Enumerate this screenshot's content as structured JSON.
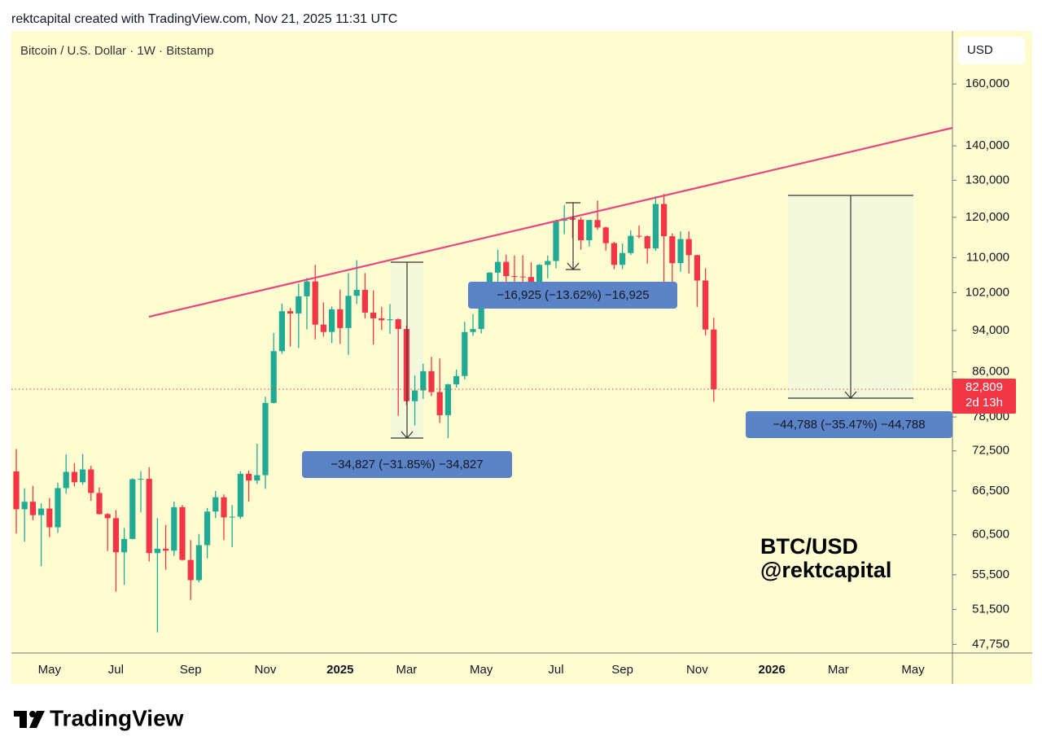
{
  "header": "rektcapital created with TradingView.com, Nov 21, 2025 11:31 UTC",
  "logo_text": "TradingView",
  "chart_data": {
    "type": "candlestick",
    "title": "Bitcoin / U.S. Dollar · 1W · Bitstamp",
    "currency": "USD",
    "watermark": [
      "BTC/USD",
      "@rektcapital"
    ],
    "annotations": [
      "−34,827 (−31.85%) −34,827",
      "−16,925 (−13.62%) −16,925",
      "−44,788 (−35.47%) −44,788"
    ],
    "up_color": "#22ab94",
    "down_color": "#f23645",
    "log_scale": true,
    "grid": false,
    "categories": [
      null,
      null,
      null,
      null,
      "May",
      null,
      null,
      null,
      null,
      null,
      null,
      null,
      "Jul",
      null,
      null,
      null,
      null,
      null,
      null,
      null,
      null,
      "Sep",
      null,
      null,
      null,
      null,
      null,
      null,
      null,
      null,
      "Nov",
      null,
      null,
      null,
      null,
      null,
      null,
      null,
      null,
      "2025",
      null,
      null,
      null,
      null,
      null,
      null,
      null,
      "Mar",
      null,
      null,
      null,
      null,
      null,
      null,
      null,
      null,
      "May",
      null,
      null,
      null,
      null,
      null,
      null,
      null,
      null,
      "Jul",
      null,
      null,
      null,
      null,
      null,
      null,
      null,
      "Sep",
      null,
      null,
      null,
      null,
      null,
      null,
      null,
      null,
      "Nov",
      null,
      null,
      null,
      null,
      null,
      null,
      null,
      null,
      "2026",
      null,
      null,
      null,
      null,
      null,
      null,
      null,
      "Mar",
      null,
      null,
      null,
      null,
      null,
      null,
      null,
      null,
      "May",
      null,
      null,
      null,
      null
    ],
    "open": [
      69360,
      63920,
      64960,
      63110,
      64010,
      61480,
      66900,
      69290,
      67750,
      69650,
      66200,
      63250,
      62700,
      58250,
      59950,
      68200,
      68250,
      58150,
      58700,
      58450,
      64200,
      57300,
      54850,
      59150,
      63600,
      65600,
      62800,
      62900,
      69000,
      68000,
      68800,
      80400,
      89900,
      98000,
      97500,
      101200,
      104500,
      95200,
      93700,
      98400,
      94500,
      101300,
      102600,
      97700,
      96500,
      96100,
      96300,
      94300,
      80700,
      82600,
      86100,
      82300,
      78300,
      83700,
      85200,
      93700,
      94300,
      104100,
      106500,
      109000,
      105700,
      105600,
      105500,
      100900,
      108300,
      109200,
      119100,
      119800,
      119400,
      114200,
      119300,
      117400,
      113500,
      108300,
      111100,
      115300,
      115200,
      112200,
      123500,
      115200,
      108700,
      114500,
      110600,
      104700,
      94200,
      null,
      null,
      null,
      null,
      null,
      null,
      null,
      null,
      null,
      null,
      null,
      null,
      null,
      null,
      null,
      null,
      null,
      null,
      null,
      null,
      null,
      null,
      null,
      null,
      null,
      null,
      null,
      null
    ],
    "high": [
      72790,
      66880,
      67230,
      64730,
      65490,
      67700,
      71950,
      70600,
      71990,
      70200,
      67000,
      63400,
      63800,
      61400,
      68350,
      69400,
      70000,
      62700,
      61800,
      65000,
      64500,
      59800,
      60600,
      64100,
      66500,
      66000,
      64500,
      69400,
      69500,
      73600,
      81500,
      93500,
      99600,
      98700,
      104000,
      105300,
      108300,
      99900,
      99000,
      102700,
      106400,
      109400,
      106400,
      102500,
      98900,
      99500,
      96500,
      95000,
      85300,
      87500,
      88800,
      88500,
      83800,
      86400,
      95800,
      97400,
      104300,
      106600,
      111900,
      110700,
      110500,
      110600,
      108900,
      108500,
      110500,
      119400,
      123200,
      120300,
      120000,
      119400,
      124400,
      117600,
      113800,
      113400,
      116700,
      117900,
      115400,
      125600,
      126200,
      115900,
      116400,
      116400,
      110700,
      107500,
      96600,
      null,
      null,
      null,
      null,
      null,
      null,
      null,
      null,
      null,
      null,
      null,
      null,
      null,
      null,
      null,
      null,
      null,
      null,
      null,
      null,
      null,
      null,
      null,
      null,
      null,
      null,
      null,
      null
    ],
    "low": [
      60660,
      59600,
      62420,
      56550,
      60190,
      60750,
      66100,
      67150,
      67400,
      65100,
      63200,
      58400,
      53500,
      54300,
      59900,
      63500,
      57100,
      49000,
      56100,
      57800,
      57200,
      52550,
      54600,
      57500,
      62700,
      59800,
      58900,
      62600,
      65000,
      67500,
      66800,
      80300,
      89400,
      90800,
      90500,
      94200,
      92200,
      92800,
      91500,
      91300,
      89200,
      99500,
      96500,
      91200,
      94100,
      93300,
      78200,
      80000,
      76600,
      81100,
      81600,
      77000,
      74500,
      83100,
      84600,
      92900,
      93400,
      100800,
      102100,
      103100,
      100400,
      102700,
      99600,
      100400,
      105200,
      107500,
      115700,
      114700,
      111900,
      112700,
      116800,
      111700,
      107300,
      107300,
      110600,
      114700,
      108600,
      111600,
      102000,
      103500,
      106700,
      106300,
      98900,
      93000,
      80600,
      null,
      null,
      null,
      null,
      null,
      null,
      null,
      null,
      null,
      null,
      null,
      null,
      null,
      null,
      null,
      null,
      null,
      null,
      null,
      null,
      null,
      null,
      null,
      null,
      null,
      null,
      null,
      null
    ],
    "close": [
      63920,
      64960,
      63110,
      64010,
      61480,
      66900,
      69290,
      67750,
      69650,
      66200,
      63250,
      62700,
      58250,
      59950,
      68200,
      68250,
      58150,
      58700,
      58450,
      64200,
      57300,
      54850,
      59150,
      63600,
      65600,
      62800,
      62900,
      69000,
      68000,
      68800,
      80400,
      89900,
      98000,
      97500,
      101200,
      104500,
      95200,
      93700,
      98400,
      94500,
      101300,
      102600,
      97700,
      96500,
      96100,
      96300,
      94300,
      80700,
      82600,
      86100,
      82300,
      78300,
      83700,
      85200,
      93700,
      94300,
      104100,
      106500,
      109000,
      105700,
      105600,
      105500,
      100900,
      108300,
      109200,
      119100,
      119800,
      119400,
      114200,
      119300,
      117400,
      113500,
      108300,
      111100,
      115300,
      115200,
      112200,
      123500,
      115200,
      108700,
      114500,
      110600,
      104700,
      94200,
      82809,
      null,
      null,
      null,
      null,
      null,
      null,
      null,
      null,
      null,
      null,
      null,
      null,
      null,
      null,
      null,
      null,
      null,
      null,
      null,
      null,
      null,
      null,
      null,
      null,
      null,
      null,
      null,
      null
    ],
    "last_price": {
      "value": 82809,
      "label": "82,809"
    },
    "countdown": "2d 13h",
    "ylim": [
      46870,
      179400
    ],
    "yticks": [
      {
        "value": 47750,
        "label": "47,750"
      },
      {
        "value": 51500,
        "label": "51,500"
      },
      {
        "value": 55500,
        "label": "55,500"
      },
      {
        "value": 60500,
        "label": "60,500"
      },
      {
        "value": 66500,
        "label": "66,500"
      },
      {
        "value": 72500,
        "label": "72,500"
      },
      {
        "value": 78000,
        "label": "78,000"
      },
      {
        "value": 86000,
        "label": "86,000"
      },
      {
        "value": 94000,
        "label": "94,000"
      },
      {
        "value": 102000,
        "label": "102,000"
      },
      {
        "value": 110000,
        "label": "110,000"
      },
      {
        "value": 120000,
        "label": "120,000"
      },
      {
        "value": 130000,
        "label": "130,000"
      },
      {
        "value": 140000,
        "label": "140,000"
      },
      {
        "value": 160000,
        "label": "160,000"
      }
    ]
  }
}
